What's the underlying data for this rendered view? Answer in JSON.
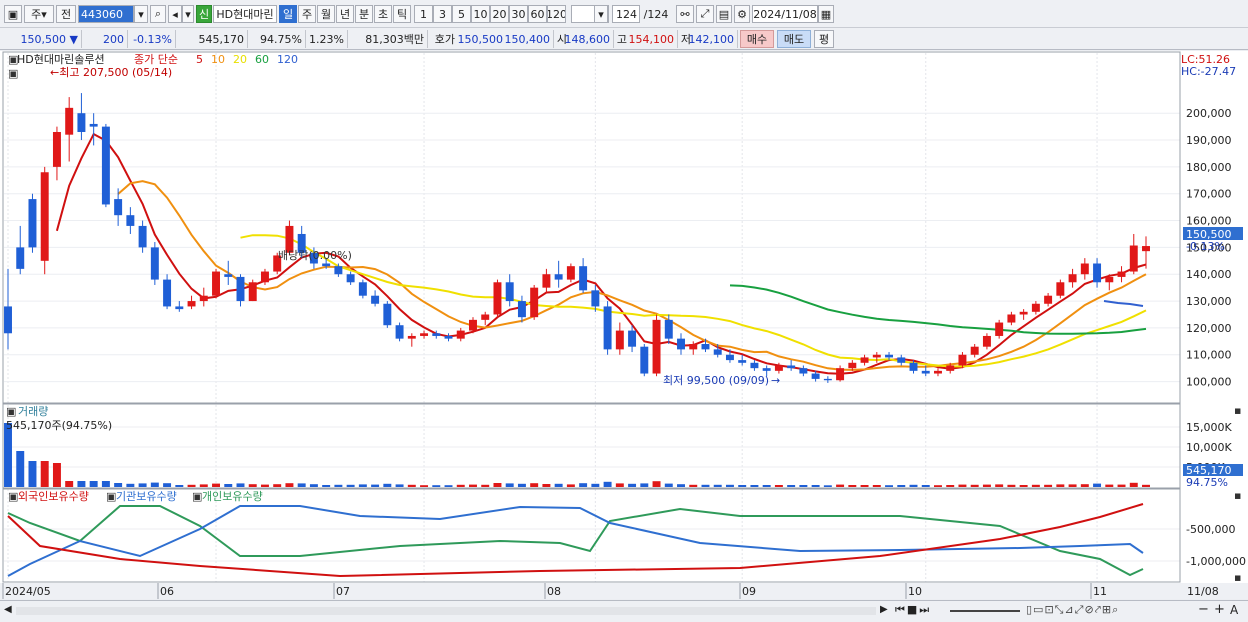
{
  "toolbar": {
    "period_select": "주",
    "prev_label": "전",
    "code": "443060",
    "new_badge": "신",
    "stock_name": "HD현대마린",
    "period_tabs": [
      "일",
      "주",
      "월",
      "년",
      "분",
      "초",
      "틱"
    ],
    "active_period": "일",
    "intervals": [
      "1",
      "3",
      "5",
      "10",
      "20",
      "30",
      "60",
      "120"
    ],
    "count": "124",
    "count_total": "/124",
    "date": "2024/11/08"
  },
  "quote": {
    "price": "150,500",
    "arrow": "▼",
    "change": "200",
    "change_pct": "-0.13%",
    "volume": "545,170",
    "volume_ratio": "94.75%",
    "turnover": "1.23%",
    "amount": "81,303백만",
    "ask_label": "호가",
    "ask": "150,500",
    "bid": "150,400",
    "open_label": "시",
    "open": "148,600",
    "high_label": "고",
    "high": "154,100",
    "low_label": "저",
    "low": "142,100",
    "buy_label": "매수",
    "sell_label": "매도",
    "eval_label": "평"
  },
  "price_panel": {
    "title": "HD현대마린솔루션",
    "legend": [
      "종가 단순",
      "5",
      "10",
      "20",
      "60",
      "120"
    ],
    "legend_colors": [
      "#d01010",
      "#d01010",
      "#f09010",
      "#e8e000",
      "#18a040",
      "#3060d0"
    ],
    "high_annotation": "←최고 207,500 (05/14)",
    "low_annotation": "최저 99,500 (09/09)",
    "div_annotation": "배당락(0.00%)",
    "lc": "LC:51.26",
    "hc": "HC:-27.47",
    "price_badge": "150,500",
    "pct_badge": "-0.13%",
    "y_ticks": [
      "200,000",
      "190,000",
      "180,000",
      "170,000",
      "160,000",
      "150,000",
      "140,000",
      "130,000",
      "120,000",
      "110,000",
      "100,000"
    ]
  },
  "volume_panel": {
    "title": "거래량",
    "value_text": "545,170주(94.75%)",
    "y_ticks": [
      "15,000K",
      "10,000K",
      "5,000K"
    ],
    "badge": "545,170",
    "pct": "94.75%"
  },
  "holdings_panel": {
    "legend": [
      "외국인보유수량",
      "기관보유수량",
      "개인보유수량"
    ],
    "colors": [
      "#d01010",
      "#2f6fd0",
      "#2f9a5a"
    ],
    "y_ticks": [
      "-500,000",
      "-1,000,000"
    ]
  },
  "x_axis": [
    "2024/05",
    "06",
    "07",
    "08",
    "09",
    "10",
    "11",
    "11/08"
  ],
  "chart_data": {
    "type": "candlestick",
    "y_range": [
      95000,
      212000
    ],
    "candles": [
      [
        128000,
        142000,
        112000,
        118000
      ],
      [
        150000,
        158000,
        140000,
        142000
      ],
      [
        168000,
        170000,
        148000,
        150000
      ],
      [
        145000,
        180000,
        140000,
        178000
      ],
      [
        180000,
        195000,
        175000,
        193000
      ],
      [
        192000,
        206000,
        182000,
        202000
      ],
      [
        200000,
        207500,
        190000,
        193000
      ],
      [
        196000,
        200000,
        188000,
        195000
      ],
      [
        195000,
        196000,
        165000,
        166000
      ],
      [
        168000,
        172000,
        158000,
        162000
      ],
      [
        162000,
        165000,
        155000,
        158000
      ],
      [
        158000,
        160000,
        148000,
        150000
      ],
      [
        150000,
        152000,
        136000,
        138000
      ],
      [
        138000,
        140000,
        127000,
        128000
      ],
      [
        128000,
        130000,
        126000,
        127000
      ],
      [
        128000,
        132000,
        127000,
        130000
      ],
      [
        130000,
        135000,
        128000,
        132000
      ],
      [
        132000,
        142000,
        131000,
        141000
      ],
      [
        140000,
        145000,
        136000,
        139000
      ],
      [
        139000,
        140000,
        128000,
        130000
      ],
      [
        130000,
        138000,
        130000,
        137000
      ],
      [
        137000,
        142000,
        136000,
        141000
      ],
      [
        141000,
        148000,
        140000,
        147000
      ],
      [
        148000,
        160000,
        147000,
        158000
      ],
      [
        155000,
        158000,
        146000,
        148000
      ],
      [
        148000,
        150000,
        142000,
        144000
      ],
      [
        144000,
        146000,
        142000,
        143000
      ],
      [
        143000,
        144000,
        139000,
        140000
      ],
      [
        140000,
        141000,
        136000,
        137000
      ],
      [
        137000,
        138000,
        131000,
        132000
      ],
      [
        132000,
        134000,
        128000,
        129000
      ],
      [
        129000,
        130000,
        120000,
        121000
      ],
      [
        121000,
        122000,
        115000,
        116000
      ],
      [
        116000,
        118000,
        113000,
        117000
      ],
      [
        117000,
        119000,
        116000,
        118000
      ],
      [
        118000,
        119000,
        116000,
        117000
      ],
      [
        117000,
        118000,
        115000,
        116000
      ],
      [
        116000,
        120000,
        115000,
        119000
      ],
      [
        119000,
        124000,
        118000,
        123000
      ],
      [
        123000,
        126000,
        121000,
        125000
      ],
      [
        125000,
        138000,
        124000,
        137000
      ],
      [
        137000,
        140000,
        128000,
        130000
      ],
      [
        130000,
        132000,
        122000,
        124000
      ],
      [
        124000,
        136000,
        123000,
        135000
      ],
      [
        135000,
        142000,
        133000,
        140000
      ],
      [
        140000,
        145000,
        135000,
        138000
      ],
      [
        138000,
        144000,
        137000,
        143000
      ],
      [
        143000,
        146000,
        133000,
        134000
      ],
      [
        134000,
        136000,
        126000,
        128000
      ],
      [
        128000,
        130000,
        110000,
        112000
      ],
      [
        112000,
        122000,
        110000,
        119000
      ],
      [
        119000,
        121000,
        111000,
        113000
      ],
      [
        113000,
        114000,
        102000,
        103000
      ],
      [
        103000,
        125000,
        102000,
        123000
      ],
      [
        123000,
        125000,
        114000,
        116000
      ],
      [
        116000,
        118000,
        110000,
        112000
      ],
      [
        112000,
        115000,
        110000,
        114000
      ],
      [
        114000,
        116000,
        111000,
        112000
      ],
      [
        112000,
        114000,
        109000,
        110000
      ],
      [
        110000,
        112000,
        107000,
        108000
      ],
      [
        108000,
        110000,
        106000,
        107000
      ],
      [
        107000,
        108000,
        104000,
        105000
      ],
      [
        105000,
        106000,
        102000,
        104000
      ],
      [
        104000,
        107000,
        103000,
        106000
      ],
      [
        106000,
        108000,
        104000,
        105000
      ],
      [
        105000,
        106000,
        102000,
        103000
      ],
      [
        103000,
        104000,
        100000,
        101000
      ],
      [
        101000,
        102000,
        99500,
        100500
      ],
      [
        100500,
        106000,
        100000,
        105000
      ],
      [
        105000,
        108000,
        104000,
        107000
      ],
      [
        107000,
        110000,
        106000,
        109000
      ],
      [
        109000,
        111000,
        107000,
        110000
      ],
      [
        110000,
        111000,
        108000,
        109000
      ],
      [
        109000,
        110000,
        106000,
        107000
      ],
      [
        107000,
        108000,
        103000,
        104000
      ],
      [
        104000,
        106000,
        102000,
        103000
      ],
      [
        103000,
        105000,
        102000,
        104000
      ],
      [
        104000,
        107000,
        103000,
        106000
      ],
      [
        106000,
        111000,
        105000,
        110000
      ],
      [
        110000,
        114000,
        109000,
        113000
      ],
      [
        113000,
        118000,
        112000,
        117000
      ],
      [
        117000,
        123000,
        116000,
        122000
      ],
      [
        122000,
        126000,
        121000,
        125000
      ],
      [
        125000,
        127000,
        123000,
        126000
      ],
      [
        126000,
        130000,
        125000,
        129000
      ],
      [
        129000,
        133000,
        128000,
        132000
      ],
      [
        132000,
        138000,
        131000,
        137000
      ],
      [
        137000,
        142000,
        135000,
        140000
      ],
      [
        140000,
        146000,
        138000,
        144000
      ],
      [
        144000,
        146000,
        135000,
        137000
      ],
      [
        137000,
        140000,
        134000,
        139000
      ],
      [
        139000,
        143000,
        137000,
        141000
      ],
      [
        141000,
        155000,
        140000,
        150700
      ],
      [
        148600,
        154100,
        142100,
        150500
      ]
    ]
  }
}
